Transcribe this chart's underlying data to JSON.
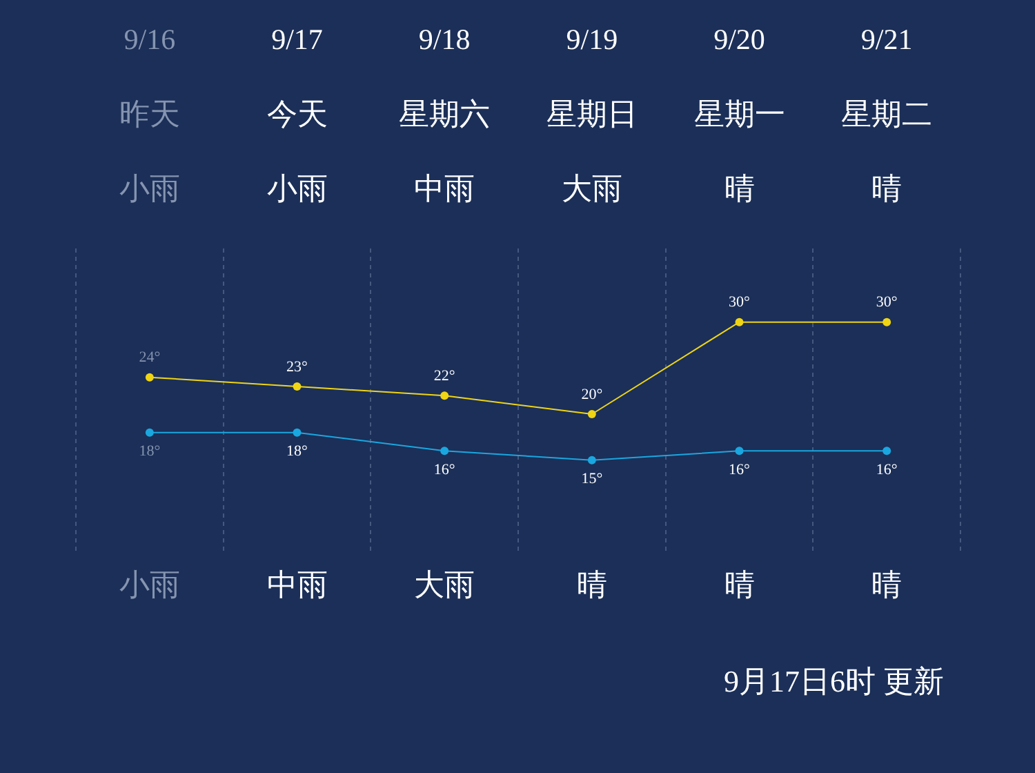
{
  "chart_data": {
    "type": "line",
    "categories": [
      "9/16",
      "9/17",
      "9/18",
      "9/19",
      "9/20",
      "9/21"
    ],
    "series": [
      {
        "color": "#f0d514",
        "values": [
          24,
          23,
          22,
          20,
          30,
          30
        ],
        "value_labels": [
          "24°",
          "23°",
          "22°",
          "20°",
          "30°",
          "30°"
        ]
      },
      {
        "color": "#1aa7e0",
        "values": [
          18,
          18,
          16,
          15,
          16,
          16
        ],
        "value_labels": [
          "18°",
          "18°",
          "16°",
          "15°",
          "16°",
          "16°"
        ]
      }
    ],
    "annotations": [
      "昨天",
      "小雨",
      "小雨",
      "今天",
      "小雨",
      "中雨",
      "星期六",
      "中雨",
      "大雨",
      "星期日",
      "大雨",
      "晴",
      "星期一",
      "晴",
      "晴",
      "星期二",
      "晴",
      "晴",
      "9月17日6时 更新"
    ],
    "grid": "x",
    "marker": "circle",
    "legend": false
  }
}
